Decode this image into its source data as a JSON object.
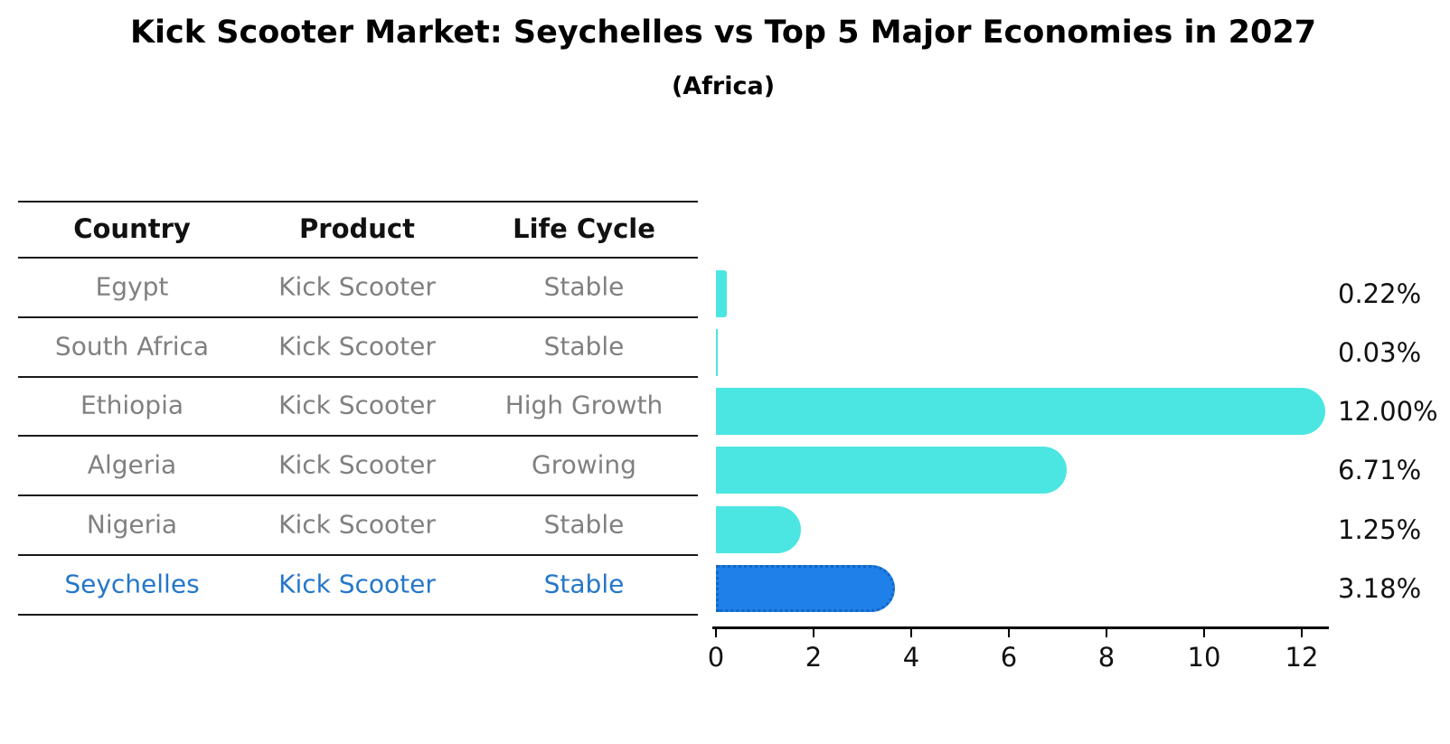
{
  "header": {
    "title": "Kick Scooter Market: Seychelles vs Top 5 Major Economies in 2027",
    "subtitle": "(Africa)"
  },
  "table": {
    "headers": [
      "Country",
      "Product",
      "Life Cycle"
    ],
    "rows": [
      {
        "country": "Egypt",
        "product": "Kick Scooter",
        "life_cycle": "Stable",
        "highlighted": false
      },
      {
        "country": "South Africa",
        "product": "Kick Scooter",
        "life_cycle": "Stable",
        "highlighted": false
      },
      {
        "country": "Ethiopia",
        "product": "Kick Scooter",
        "life_cycle": "High Growth",
        "highlighted": false
      },
      {
        "country": "Algeria",
        "product": "Kick Scooter",
        "life_cycle": "Growing",
        "highlighted": false
      },
      {
        "country": "Nigeria",
        "product": "Kick Scooter",
        "life_cycle": "Stable",
        "highlighted": false
      },
      {
        "country": "Seychelles",
        "product": "Kick Scooter",
        "life_cycle": "Stable",
        "highlighted": true
      }
    ]
  },
  "chart_data": {
    "type": "bar",
    "orientation": "horizontal",
    "title": "Kick Scooter Market: Seychelles vs Top 5 Major Economies in 2027",
    "subtitle": "(Africa)",
    "categories": [
      "Egypt",
      "South Africa",
      "Ethiopia",
      "Algeria",
      "Nigeria",
      "Seychelles"
    ],
    "values": [
      0.22,
      0.03,
      12.0,
      6.71,
      1.25,
      3.18
    ],
    "value_labels": [
      "0.22%",
      "0.03%",
      "12.00%",
      "6.71%",
      "1.25%",
      "3.18%"
    ],
    "xticks": [
      0,
      2,
      4,
      6,
      8,
      10,
      12
    ],
    "xlim": [
      0,
      12.6
    ],
    "xlabel": "",
    "ylabel": "",
    "grid": false,
    "legend": "none",
    "bar_color": "#4BE6E2",
    "highlight_color": "#1E80E8",
    "highlight_border_color": "#1266C4",
    "highlight_index": 5,
    "highlight_style": "dotted-border"
  }
}
